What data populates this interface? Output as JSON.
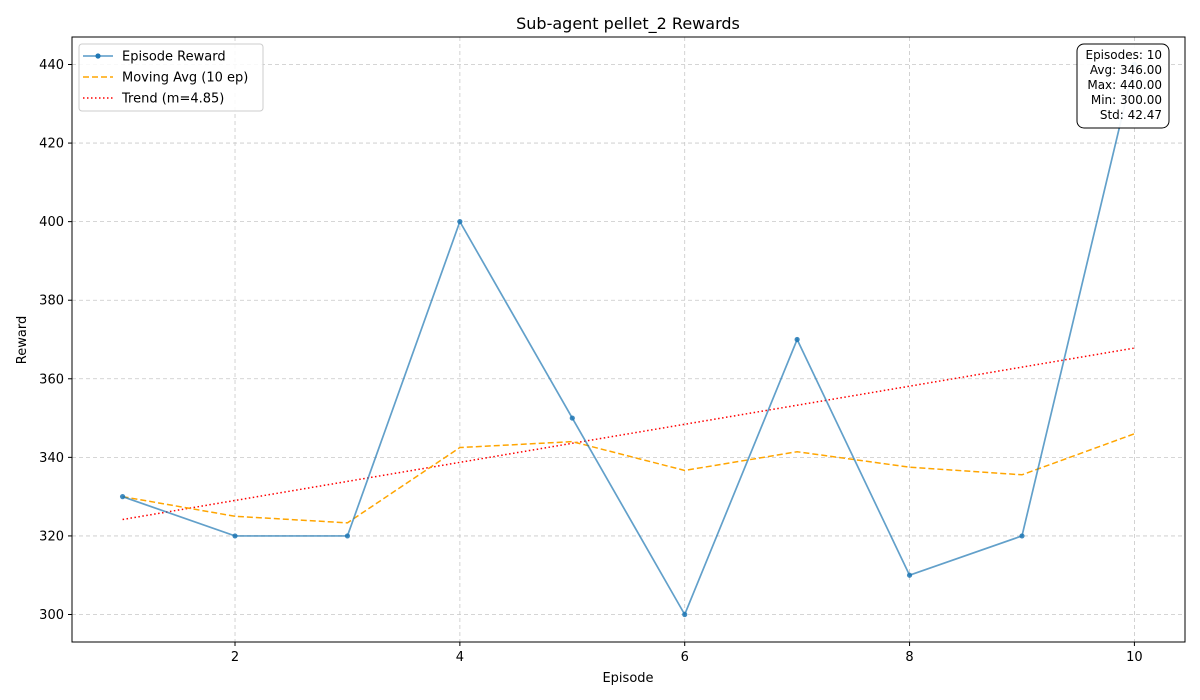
{
  "chart_data": {
    "type": "line",
    "title": "Sub-agent pellet_2 Rewards",
    "xlabel": "Episode",
    "ylabel": "Reward",
    "xlim": [
      0.55,
      10.45
    ],
    "ylim": [
      293,
      447
    ],
    "xticks": [
      2,
      4,
      6,
      8,
      10
    ],
    "yticks": [
      300,
      320,
      340,
      360,
      380,
      400,
      420,
      440
    ],
    "grid": true,
    "legend_position": "top-left",
    "x": [
      1,
      2,
      3,
      4,
      5,
      6,
      7,
      8,
      9,
      10
    ],
    "series": [
      {
        "name": "Episode Reward",
        "style": "solid-markers",
        "color": "#1f77b4",
        "values": [
          330,
          320,
          320,
          400,
          350,
          300,
          370,
          310,
          320,
          440
        ]
      },
      {
        "name": "Moving Avg (10 ep)",
        "style": "dashed",
        "color": "#ffa500",
        "values": [
          330,
          325,
          323.33,
          342.5,
          344,
          336.67,
          341.43,
          337.5,
          335.56,
          346
        ]
      },
      {
        "name": "Trend (m=4.85)",
        "style": "dotted",
        "color": "#ff0000",
        "values": [
          324.18,
          329.03,
          333.88,
          338.73,
          343.58,
          348.42,
          353.27,
          358.12,
          362.97,
          367.82
        ]
      }
    ],
    "stats_box": {
      "position": "top-right",
      "lines": [
        "Episodes: 10",
        "Avg: 346.00",
        "Max: 440.00",
        "Min: 300.00",
        "Std: 42.47"
      ]
    }
  }
}
